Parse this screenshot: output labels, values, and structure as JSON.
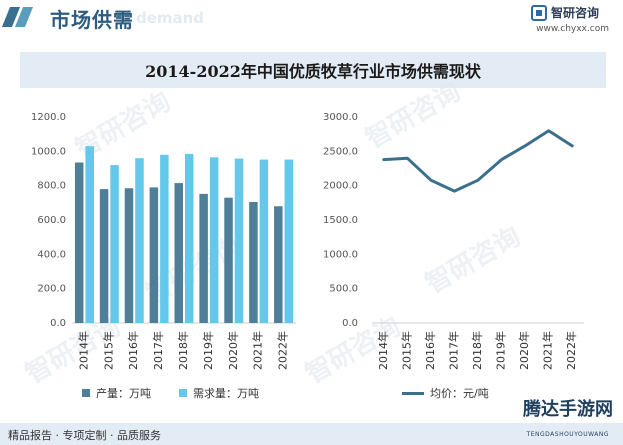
{
  "header": {
    "title": "市场供需",
    "ghost_text": "d demand",
    "logo_text": "智研咨询",
    "logo_url": "www.chyxx.com"
  },
  "chart_title": "2014-2022年中国优质牧草行业市场供需现状",
  "chart_data": [
    {
      "type": "bar",
      "categories": [
        "2014年",
        "2015年",
        "2016年",
        "2017年",
        "2018年",
        "2019年",
        "2020年",
        "2021年",
        "2022年"
      ],
      "series": [
        {
          "name": "产量：万吨",
          "color": "#4f7f98",
          "values": [
            935,
            780,
            785,
            790,
            815,
            752,
            730,
            705,
            680
          ]
        },
        {
          "name": "需求量：万吨",
          "color": "#63c8ea",
          "values": [
            1030,
            920,
            960,
            980,
            985,
            965,
            958,
            952,
            952
          ]
        }
      ],
      "ylim": [
        0,
        1200
      ],
      "yticks": [
        "1200.0",
        "1000.0",
        "800.0",
        "600.0",
        "400.0",
        "200.0",
        "0.0"
      ],
      "ytick_values": [
        1200,
        1000,
        800,
        600,
        400,
        200,
        0
      ],
      "legend_position": "bottom"
    },
    {
      "type": "line",
      "categories": [
        "2014年",
        "2015年",
        "2016年",
        "2017年",
        "2018年",
        "2019年",
        "2020年",
        "2021年",
        "2022年"
      ],
      "series": [
        {
          "name": "均价：元/吨",
          "color": "#3b6f8e",
          "values": [
            2380,
            2400,
            2080,
            1920,
            2080,
            2380,
            2580,
            2800,
            2580
          ]
        }
      ],
      "ylim": [
        0,
        3000
      ],
      "yticks": [
        "3000.0",
        "2500.0",
        "2000.0",
        "1500.0",
        "1000.0",
        "500.0",
        "0.0"
      ],
      "ytick_values": [
        3000,
        2500,
        2000,
        1500,
        1000,
        500,
        0
      ],
      "legend_position": "bottom"
    }
  ],
  "watermarks": [
    "智研咨询",
    "智研咨询",
    "智研咨询",
    "智研咨询",
    "智研咨询",
    "智研咨询"
  ],
  "footer": {
    "text": "精品报告 · 专项定制 · 品质服务",
    "brand": "腾达手游网",
    "brand_sub": "TENGDASHOUYOUWANG",
    "brand_overlay": "智研咨询"
  }
}
